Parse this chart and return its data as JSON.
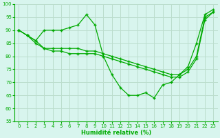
{
  "xlabel": "Humidité relative (%)",
  "bg_color": "#d8f5ee",
  "grid_color": "#bbddcc",
  "line_color": "#00aa00",
  "ylim": [
    55,
    100
  ],
  "xlim": [
    -0.5,
    23.5
  ],
  "yticks": [
    55,
    60,
    65,
    70,
    75,
    80,
    85,
    90,
    95,
    100
  ],
  "xticks": [
    0,
    1,
    2,
    3,
    4,
    5,
    6,
    7,
    8,
    9,
    10,
    11,
    12,
    13,
    14,
    15,
    16,
    17,
    18,
    19,
    20,
    21,
    22,
    23
  ],
  "series1": [
    90,
    88,
    86,
    90,
    90,
    90,
    91,
    92,
    96,
    92,
    80,
    73,
    68,
    65,
    65,
    66,
    64,
    69,
    70,
    73,
    76,
    85,
    96,
    98
  ],
  "series2": [
    90,
    88,
    86,
    83,
    83,
    83,
    83,
    83,
    82,
    82,
    81,
    80,
    79,
    78,
    77,
    76,
    75,
    74,
    73,
    73,
    75,
    80,
    95,
    97
  ],
  "series3": [
    90,
    88,
    85,
    83,
    82,
    82,
    81,
    81,
    81,
    81,
    80,
    79,
    78,
    77,
    76,
    75,
    74,
    73,
    72,
    72,
    74,
    79,
    94,
    97
  ]
}
